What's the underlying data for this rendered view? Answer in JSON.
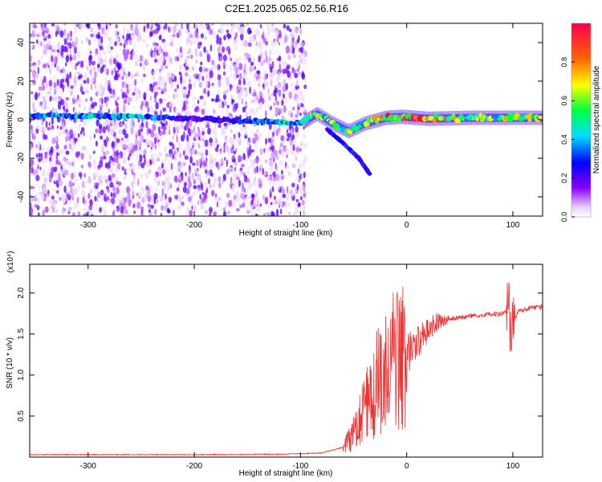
{
  "figure_title": "C2E1.2025.065.02.56.R16",
  "chart_data": [
    {
      "type": "heatmap",
      "title": "",
      "xlabel": "Height of straight line (km)",
      "ylabel": "Frequency (Hz)",
      "xlim": [
        -355,
        128
      ],
      "ylim": [
        -50,
        50
      ],
      "xticks": [
        -300,
        -200,
        -100,
        0,
        100
      ],
      "yticks": [
        -40,
        -20,
        0,
        20,
        40
      ],
      "colorbar": {
        "label": "Normalized spectral amplitude",
        "range": [
          0.0,
          1.0
        ],
        "ticks": [
          "0.0",
          "0.2",
          "0.4",
          "0.6",
          "0.8"
        ],
        "colormap": [
          "#ffffff",
          "#8800ff",
          "#0000ff",
          "#00e0ff",
          "#00ff40",
          "#ffff00",
          "#ff6000",
          "#ff0050"
        ]
      },
      "features": {
        "noise_region_x": [
          -355,
          -95
        ],
        "carrier_track": [
          {
            "x": -355,
            "f": 2.0,
            "a": 0.35
          },
          {
            "x": -300,
            "f": 2.0,
            "a": 0.4
          },
          {
            "x": -250,
            "f": 1.5,
            "a": 0.4
          },
          {
            "x": -200,
            "f": 0.5,
            "a": 0.2
          },
          {
            "x": -160,
            "f": -0.5,
            "a": 0.25
          },
          {
            "x": -130,
            "f": -1.0,
            "a": 0.4
          },
          {
            "x": -100,
            "f": -2.0,
            "a": 0.45
          },
          {
            "x": -85,
            "f": 3.0,
            "a": 0.55
          },
          {
            "x": -70,
            "f": -2.0,
            "a": 0.55
          },
          {
            "x": -55,
            "f": -6.0,
            "a": 0.6
          },
          {
            "x": -40,
            "f": -2.0,
            "a": 0.55
          },
          {
            "x": -20,
            "f": 1.0,
            "a": 0.8
          },
          {
            "x": -5,
            "f": 1.5,
            "a": 0.75
          },
          {
            "x": 20,
            "f": 0.5,
            "a": 0.85
          },
          {
            "x": 60,
            "f": 1.0,
            "a": 0.55
          },
          {
            "x": 100,
            "f": 1.0,
            "a": 0.6
          },
          {
            "x": 128,
            "f": 1.0,
            "a": 0.55
          }
        ],
        "lower_branch": [
          {
            "x": -75,
            "f": -5.0
          },
          {
            "x": -60,
            "f": -12.0
          },
          {
            "x": -45,
            "f": -20.0
          },
          {
            "x": -35,
            "f": -28.0
          }
        ]
      }
    },
    {
      "type": "line",
      "title": "",
      "xlabel": "Height of straight line (km)",
      "ylabel": "SNR (10 * v/v)",
      "y_multiplier": "(x10⁴)",
      "xlim": [
        -355,
        128
      ],
      "ylim": [
        0,
        2.35
      ],
      "xticks": [
        -300,
        -200,
        -100,
        0,
        100
      ],
      "yticks": [
        0.5,
        1.0,
        1.5,
        2.0
      ],
      "color": "#ee3333",
      "x": [
        -355,
        -300,
        -200,
        -120,
        -80,
        -60,
        -50,
        -40,
        -30,
        -20,
        -10,
        0,
        10,
        20,
        30,
        40,
        50,
        60,
        70,
        80,
        90,
        95,
        100,
        105,
        110,
        120,
        128
      ],
      "y": [
        0.03,
        0.03,
        0.03,
        0.035,
        0.05,
        0.12,
        0.3,
        0.55,
        0.85,
        1.05,
        1.2,
        1.25,
        1.4,
        1.55,
        1.65,
        1.68,
        1.7,
        1.72,
        1.73,
        1.74,
        1.75,
        1.78,
        1.6,
        1.78,
        1.8,
        1.82,
        1.83
      ]
    }
  ]
}
